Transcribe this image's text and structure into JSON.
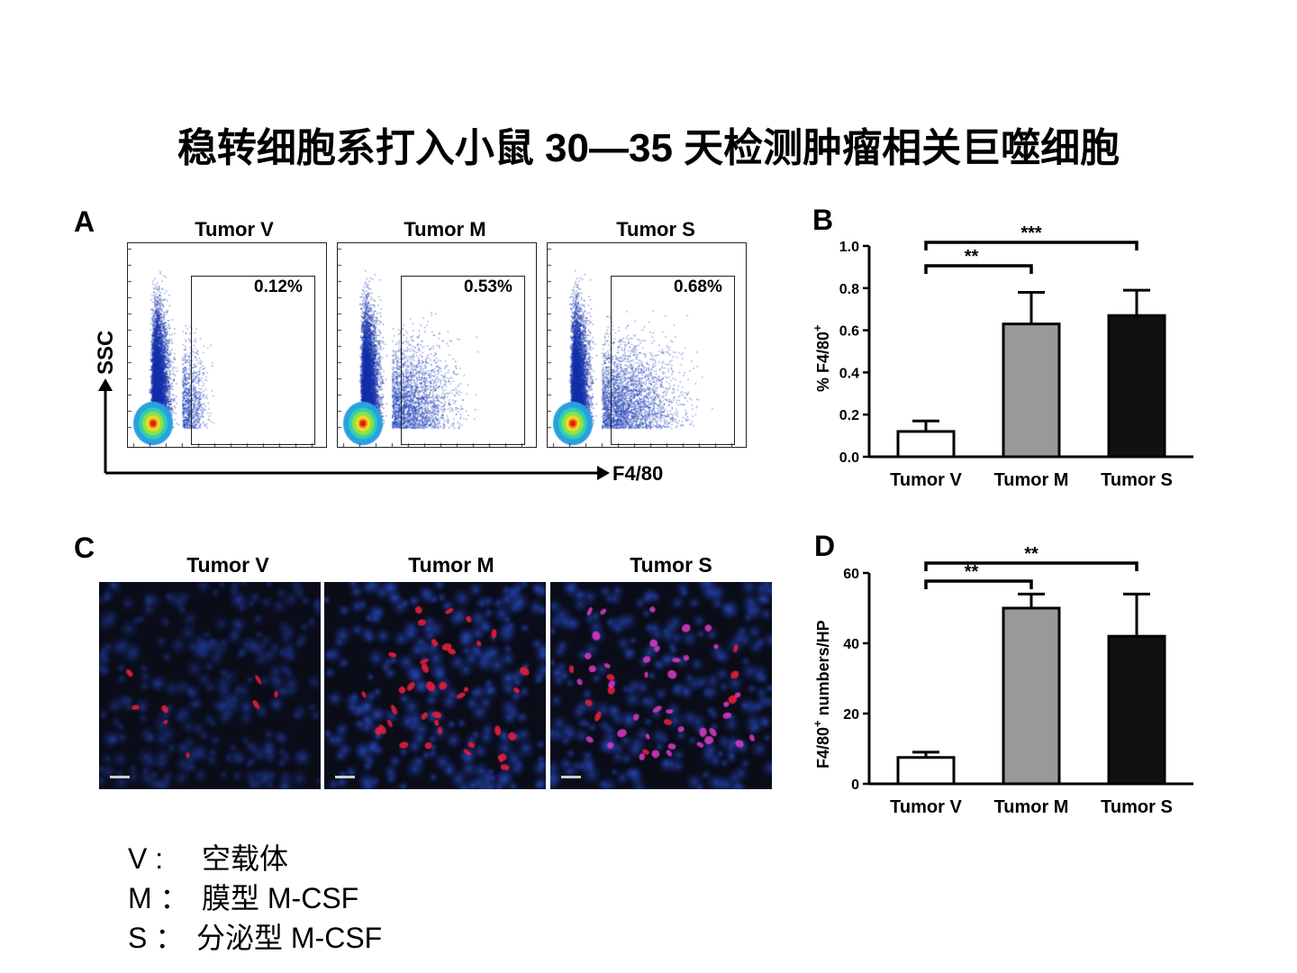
{
  "title": "稳转细胞系打入小鼠 30—35 天检测肿瘤相关巨噬细胞",
  "panel_a": {
    "letter": "A",
    "y_axis_label": "SSC",
    "x_axis_label": "F4/80",
    "plots": [
      {
        "title": "Tumor V",
        "gate_percent": "0.12%"
      },
      {
        "title": "Tumor M",
        "gate_percent": "0.53%"
      },
      {
        "title": "Tumor S",
        "gate_percent": "0.68%"
      }
    ]
  },
  "panel_c": {
    "letter": "C",
    "images": [
      {
        "title": "Tumor V"
      },
      {
        "title": "Tumor M"
      },
      {
        "title": "Tumor S"
      }
    ]
  },
  "chart_data": [
    {
      "type": "bar",
      "panel": "B",
      "categories": [
        "Tumor V",
        "Tumor M",
        "Tumor S"
      ],
      "values": [
        0.12,
        0.63,
        0.67
      ],
      "errors": [
        0.05,
        0.15,
        0.12
      ],
      "bar_colors": [
        "#ffffff",
        "#999999",
        "#111111"
      ],
      "ylabel": "% F4/80",
      "ylabel_superscript": "+",
      "ylim": [
        0,
        1.0
      ],
      "yticks": [
        "0.0",
        "0.2",
        "0.4",
        "0.6",
        "0.8",
        "1.0"
      ],
      "significance": [
        {
          "from": 0,
          "to": 1,
          "label": "**"
        },
        {
          "from": 0,
          "to": 2,
          "label": "***"
        }
      ]
    },
    {
      "type": "bar",
      "panel": "D",
      "categories": [
        "Tumor V",
        "Tumor M",
        "Tumor S"
      ],
      "values": [
        7.5,
        50,
        42
      ],
      "errors": [
        1.5,
        4,
        12
      ],
      "bar_colors": [
        "#ffffff",
        "#999999",
        "#111111"
      ],
      "ylabel_prefix": "F4/80",
      "ylabel_superscript": "+",
      "ylabel_suffix": " numbers/HP",
      "ylim": [
        0,
        60
      ],
      "yticks": [
        "0",
        "20",
        "40",
        "60"
      ],
      "significance": [
        {
          "from": 0,
          "to": 1,
          "label": "**"
        },
        {
          "from": 0,
          "to": 2,
          "label": "**"
        }
      ]
    }
  ],
  "legend": [
    {
      "key": "V :",
      "value": "空载体"
    },
    {
      "key": "M ：",
      "value": "膜型 M-CSF"
    },
    {
      "key": "S ：",
      "value": "分泌型 M-CSF"
    }
  ]
}
